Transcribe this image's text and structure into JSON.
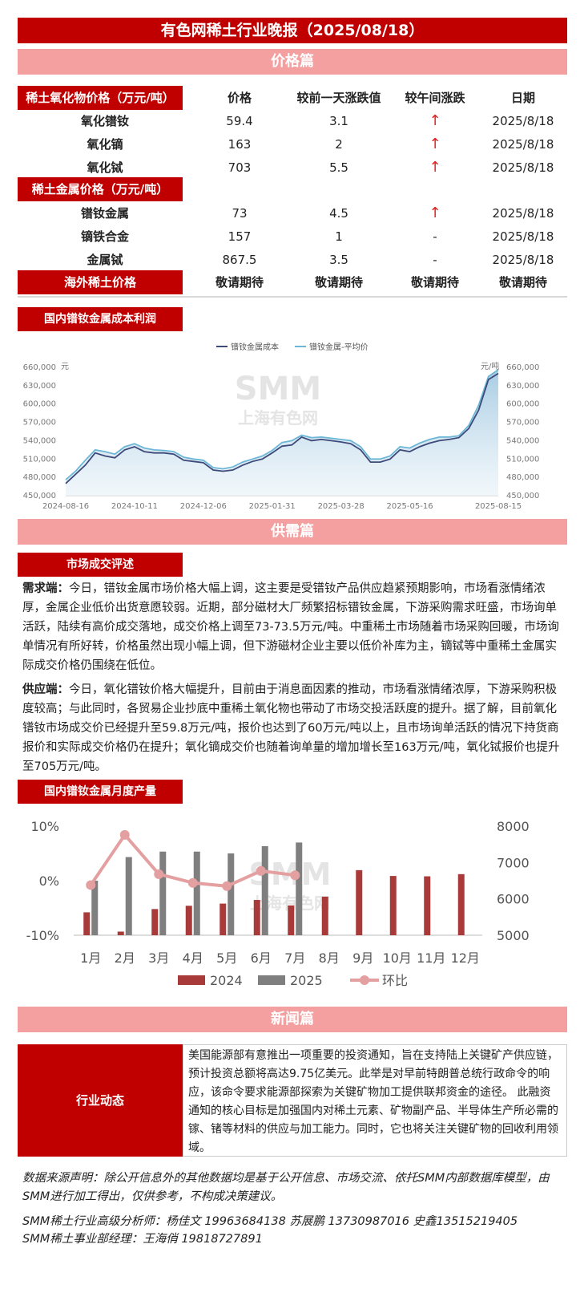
{
  "title": "有色网稀土行业晚报（2025/08/18）",
  "section_price": "价格篇",
  "section_supply": "供需篇",
  "section_news": "新闻篇",
  "oxide": {
    "label": "稀土氧化物价格（万元/吨）",
    "headers": [
      "价格",
      "较前一天涨跌值",
      "较午间涨跌",
      "日期"
    ],
    "rows": [
      {
        "name": "氧化镨钕",
        "price": "59.4",
        "change": "3.1",
        "noon": "↑",
        "date": "2025/8/18"
      },
      {
        "name": "氧化镝",
        "price": "163",
        "change": "2",
        "noon": "↑",
        "date": "2025/8/18"
      },
      {
        "name": "氧化铽",
        "price": "703",
        "change": "5.5",
        "noon": "↑",
        "date": "2025/8/18"
      }
    ]
  },
  "metal": {
    "label": "稀土金属价格（万元/吨）",
    "rows": [
      {
        "name": "镨钕金属",
        "price": "73",
        "change": "4.5",
        "noon": "↑",
        "date": "2025/8/18"
      },
      {
        "name": "镝铁合金",
        "price": "157",
        "change": "1",
        "noon": "-",
        "date": "2025/8/18"
      },
      {
        "name": "金属铽",
        "price": "867.5",
        "change": "3.5",
        "noon": "-",
        "date": "2025/8/18"
      }
    ]
  },
  "overseas": {
    "label": "海外稀土价格",
    "values": [
      "敬请期待",
      "敬请期待",
      "敬请期待",
      "敬请期待"
    ]
  },
  "cost_chart_label": "国内镨钕金属成本利润",
  "market_label": "市场成交评述",
  "demand_title": "需求端：",
  "demand_text": "今日，镨钕金属市场价格大幅上调，这主要是受镨钕产品供应趋紧预期影响，市场看涨情绪浓厚，金属企业低价出货意愿较弱。近期，部分磁材大厂频繁招标镨钕金属，下游采购需求旺盛，市场询单活跃，陆续有高价成交落地，成交价格上调至73-73.5万元/吨。中重稀土市场随着市场采购回暖，市场询单情况有所好转，价格虽然出现小幅上调，但下游磁材企业主要以低价补库为主，镝铽等中重稀土金属实际成交价格仍围绕在低位。",
  "supply_title": "供应端：",
  "supply_text": "今日，氧化镨钕价格大幅提升，目前由于消息面因素的推动，市场看涨情绪浓厚，下游采购积极度较高；与此同时，各贸易企业抄底中重稀土氧化物也带动了市场交投活跃度的提升。据了解，目前氧化镨钕市场成交价已经提升至59.8万元/吨，报价也达到了60万元/吨以上，且市场询单活跃的情况下持货商报价和实际成交价格仍在提升；氧化镝成交价也随着询单量的增加增长至163万元/吨，氧化铽报价也提升至705万元/吨。",
  "monthly_label": "国内镨钕金属月度产量",
  "news_label": "行业动态",
  "news_text": "美国能源部有意推出一项重要的投资通知，旨在支持陆上关键矿产供应链，预计投资总额将高达9.75亿美元。此举是对早前特朗普总统行政命令的响应，该命令要求能源部探索为关键矿物加工提供联邦资金的途径。 此融资通知的核心目标是加强国内对稀土元素、矿物副产品、半导体生产所必需的镓、锗等材料的供应与加工能力。同时，它也将关注关键矿物的回收利用领域。",
  "disclaimer": "数据来源声明：除公开信息外的其他数据均是基于公开信息、市场交流、依托SMM内部数据库模型，由SMM进行加工得出，仅供参考，不构成决策建议。",
  "analysts": "SMM稀土行业高级分析师：杨佳文 19963684138  苏展鹏 13730987016  史鑫13515219405",
  "manager": "SMM稀土事业部经理：王海俏 19818727891",
  "watermark_main": "SMM",
  "watermark_sub": "上海有色网",
  "chart_data": [
    {
      "type": "area",
      "series": [
        {
          "name": "镨钕金属成本",
          "color": "#3d4a7a",
          "values": [
            470000,
            485000,
            500000,
            520000,
            515000,
            512000,
            525000,
            530000,
            522000,
            520000,
            520000,
            518000,
            508000,
            506000,
            504000,
            492000,
            490000,
            492000,
            500000,
            506000,
            510000,
            520000,
            531000,
            533000,
            546000,
            540000,
            542000,
            540000,
            538000,
            535000,
            525000,
            505000,
            505000,
            510000,
            525000,
            522000,
            530000,
            536000,
            540000,
            542000,
            545000,
            560000,
            590000,
            640000,
            650000
          ]
        },
        {
          "name": "镨钕金属-平均价",
          "color": "#6cb6d6",
          "values": [
            476000,
            490000,
            508000,
            525000,
            522000,
            518000,
            530000,
            535000,
            528000,
            525000,
            524000,
            522000,
            513000,
            510000,
            508000,
            496000,
            494000,
            497000,
            505000,
            510000,
            515000,
            524000,
            537000,
            540000,
            549000,
            545000,
            546000,
            544000,
            542000,
            540000,
            530000,
            510000,
            510000,
            515000,
            530000,
            528000,
            536000,
            542000,
            546000,
            546000,
            548000,
            565000,
            598000,
            645000,
            656000
          ]
        }
      ],
      "x_ticks": [
        "2024-08-16",
        "2024-10-11",
        "2024-12-06",
        "2025-01-31",
        "2025-03-28",
        "2025-05-16",
        "2025-08-15"
      ],
      "y_ticks": [
        "450,000",
        "480,000",
        "510,000",
        "540,000",
        "570,000",
        "600,000",
        "630,000",
        "660,000"
      ],
      "ylim": [
        450000,
        660000
      ],
      "ylabel_left": "元",
      "ylabel_right": "元/吨"
    },
    {
      "type": "bar",
      "categories": [
        "1月",
        "2月",
        "3月",
        "4月",
        "5月",
        "6月",
        "7月",
        "8月",
        "9月",
        "10月",
        "11月",
        "12月"
      ],
      "series": [
        {
          "name": "2024",
          "color": "#a83a3a",
          "values": [
            5630,
            5100,
            5720,
            5810,
            5870,
            5970,
            5820,
            6060,
            6790,
            6630,
            6620,
            6680
          ]
        },
        {
          "name": "2025",
          "color": "#7f7f7f",
          "values": [
            6500,
            7150,
            7300,
            7300,
            7250,
            7450,
            7550,
            null,
            null,
            null,
            null,
            null
          ]
        },
        {
          "name": "环比",
          "color": "#e4a0a0",
          "values": [
            -0.8,
            8.4,
            1.2,
            -0.4,
            -1.0,
            1.8,
            1.0,
            null,
            null,
            null,
            null,
            null
          ]
        }
      ],
      "y_left_ticks": [
        "10%",
        "0%",
        "-10%"
      ],
      "y_right_ticks": [
        "8000",
        "7000",
        "6000",
        "5000"
      ],
      "ylim_left": [
        -10,
        10
      ],
      "ylim_right": [
        5000,
        8000
      ]
    }
  ]
}
